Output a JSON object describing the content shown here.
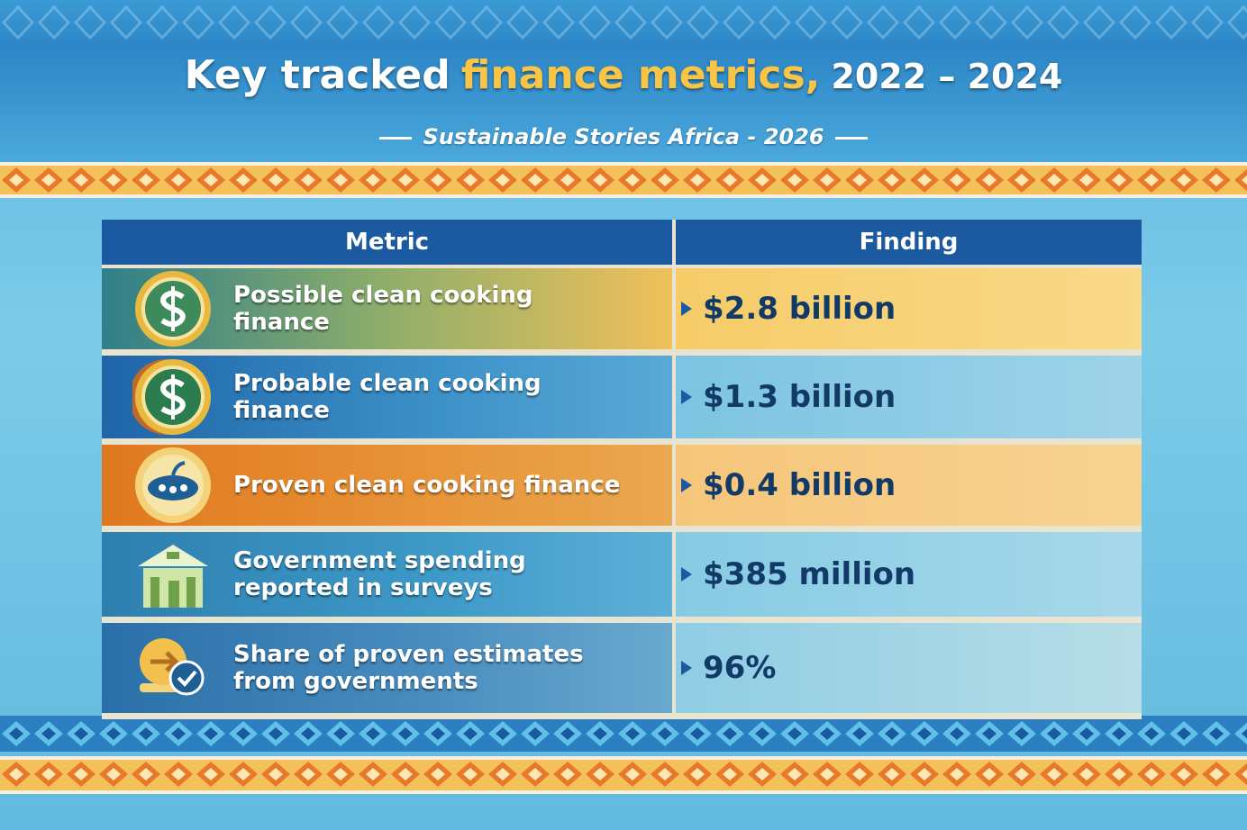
{
  "header": {
    "title_parts": [
      "Key tracked",
      "finance metrics,",
      "2022 – 2024"
    ],
    "subtitle": "Sustainable Stories Africa - 2026"
  },
  "table": {
    "columns": [
      "Metric",
      "Finding"
    ],
    "rows": [
      [
        "Possible clean cooking finance",
        "$2.8 billion"
      ],
      [
        "Probable clean cooking finance",
        "$1.3 billion"
      ],
      [
        "Proven clean cooking finance",
        "$0.4 billion"
      ],
      [
        "Government spending reported in surveys",
        "$385 million"
      ],
      [
        "Share of proven estimates from governments",
        "96%"
      ]
    ]
  }
}
